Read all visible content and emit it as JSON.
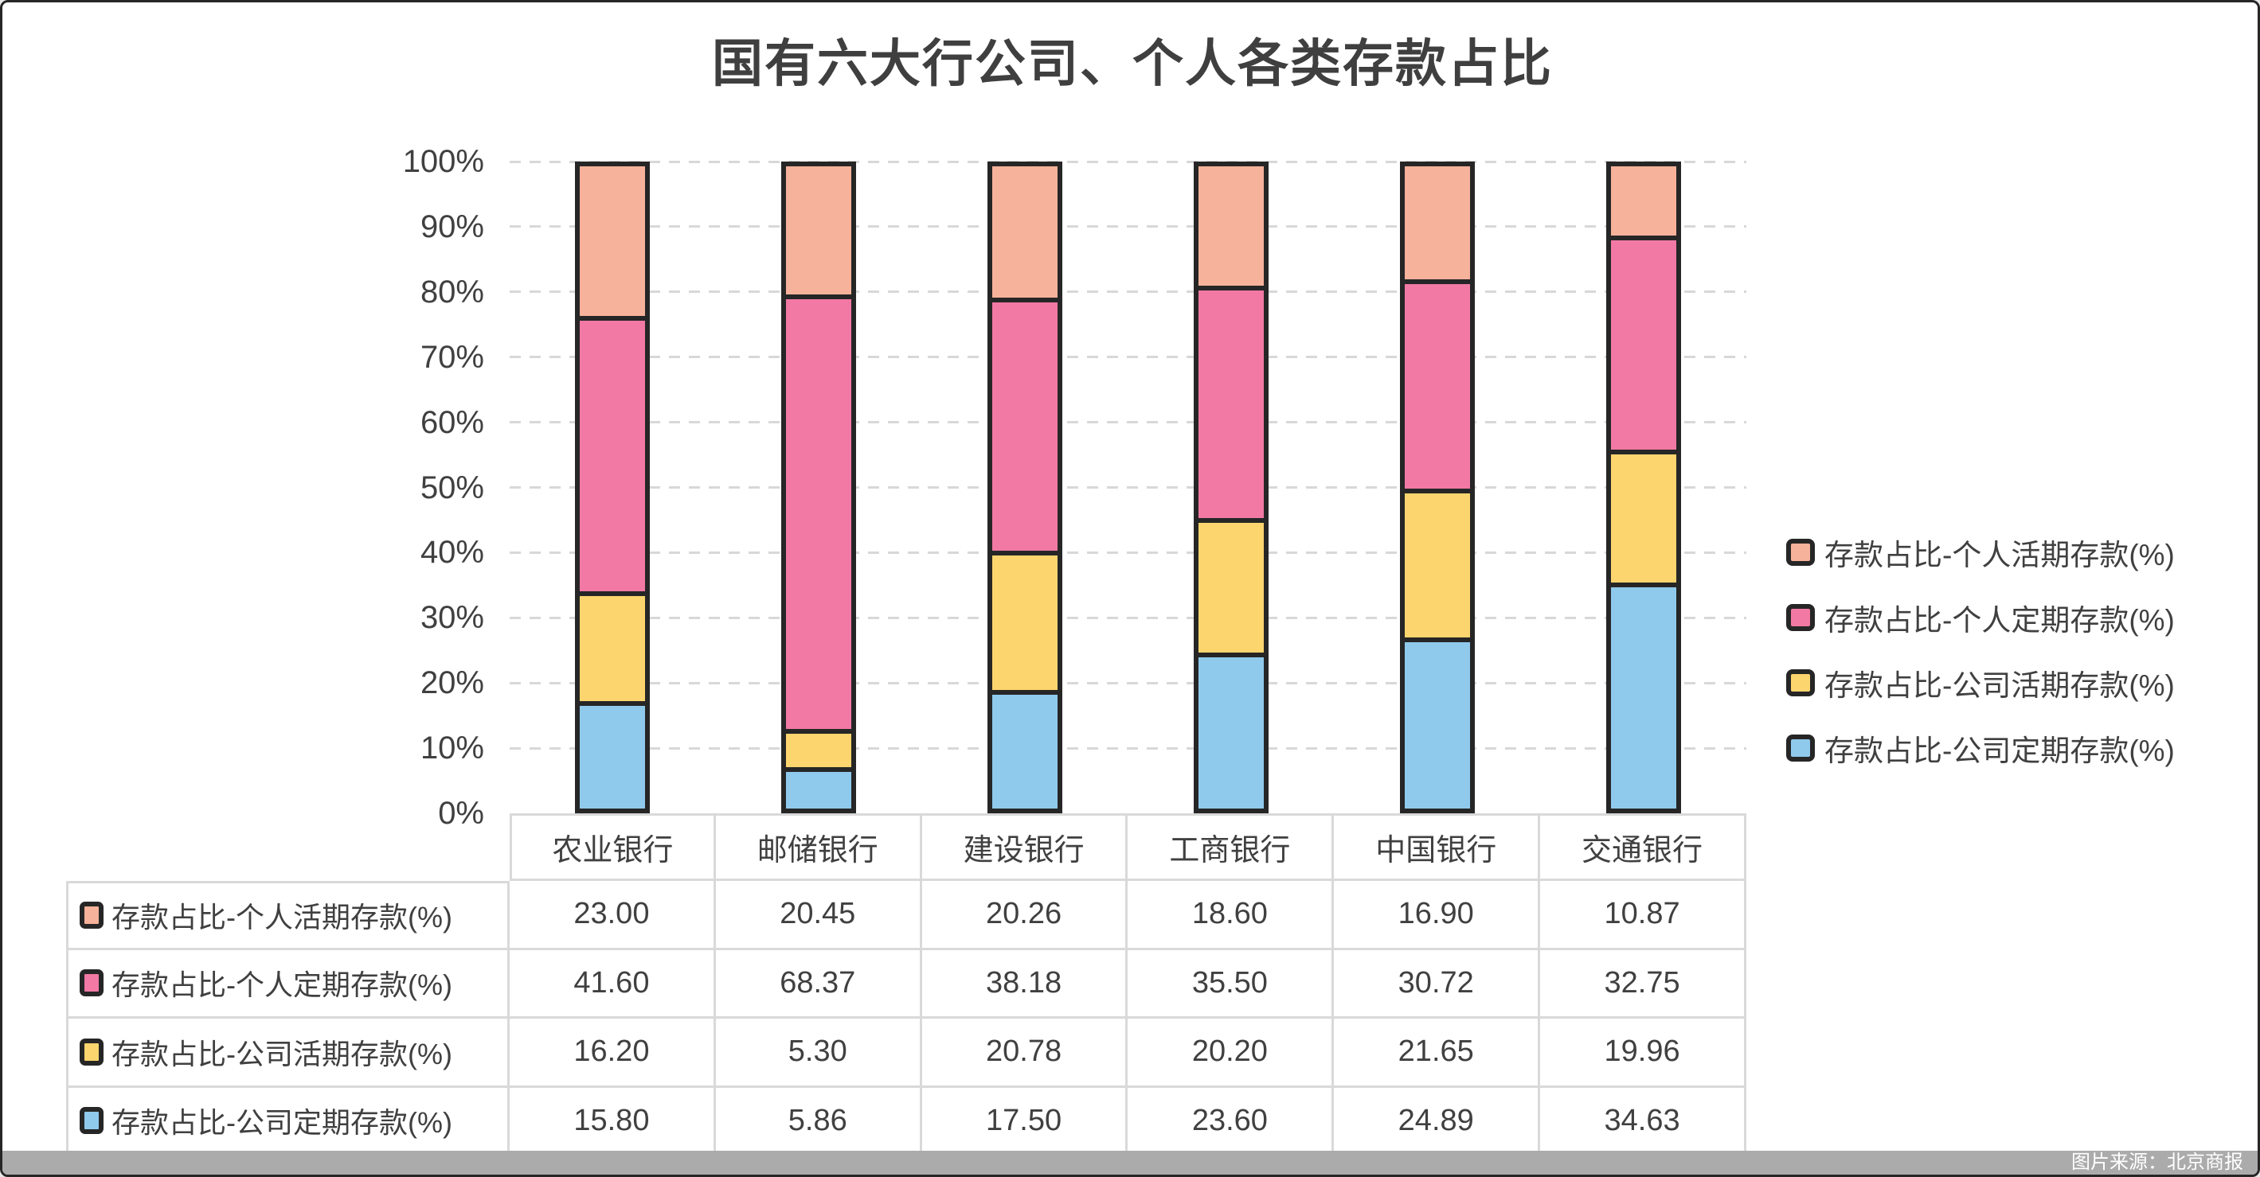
{
  "title": "国有六大行公司、个人各类存款占比",
  "colors": {
    "series_personal_demand": "#F7B29B",
    "series_personal_time": "#F279A4",
    "series_corporate_demand": "#FDD56E",
    "series_corporate_time": "#8FCAED",
    "bar_border": "#262626",
    "gridline": "#D8D8D8",
    "text": "#404040",
    "table_border": "#D9D9D9",
    "watermark_bg": "#ABABAB",
    "watermark_text": "#FFFFFF",
    "background": "#FFFFFF"
  },
  "chart_data": {
    "type": "bar",
    "stacking": "percent",
    "title": "国有六大行公司、个人各类存款占比",
    "categories": [
      "农业银行",
      "邮储银行",
      "建设银行",
      "工商银行",
      "中国银行",
      "交通银行"
    ],
    "series": [
      {
        "name": "存款占比-个人活期存款(%)",
        "color": "#F7B29B",
        "values": [
          23.0,
          20.45,
          20.26,
          18.6,
          16.9,
          10.87
        ]
      },
      {
        "name": "存款占比-个人定期存款(%)",
        "color": "#F279A4",
        "values": [
          41.6,
          68.37,
          38.18,
          35.5,
          30.72,
          32.75
        ]
      },
      {
        "name": "存款占比-公司活期存款(%)",
        "color": "#FDD56E",
        "values": [
          16.2,
          5.3,
          20.78,
          20.2,
          21.65,
          19.96
        ]
      },
      {
        "name": "存款占比-公司定期存款(%)",
        "color": "#8FCAED",
        "values": [
          15.8,
          5.86,
          17.5,
          23.6,
          24.89,
          34.63
        ]
      }
    ],
    "stack_order_bottom_to_top": [
      "存款占比-公司定期存款(%)",
      "存款占比-公司活期存款(%)",
      "存款占比-个人定期存款(%)",
      "存款占比-个人活期存款(%)"
    ],
    "xlabel": "",
    "ylabel": "",
    "ylim": [
      0,
      100
    ],
    "y_ticks": [
      "100%",
      "90%",
      "80%",
      "70%",
      "60%",
      "50%",
      "40%",
      "30%",
      "20%",
      "10%",
      "0%"
    ],
    "grid": "dashed-horizontal",
    "legend_position": "right"
  },
  "table": {
    "header": [
      "农业银行",
      "邮储银行",
      "建设银行",
      "工商银行",
      "中国银行",
      "交通银行"
    ],
    "rows": [
      {
        "label": "存款占比-个人活期存款(%)",
        "color": "#F7B29B",
        "cells": [
          "23.00",
          "20.45",
          "20.26",
          "18.60",
          "16.90",
          "10.87"
        ]
      },
      {
        "label": "存款占比-个人定期存款(%)",
        "color": "#F279A4",
        "cells": [
          "41.60",
          "68.37",
          "38.18",
          "35.50",
          "30.72",
          "32.75"
        ]
      },
      {
        "label": "存款占比-公司活期存款(%)",
        "color": "#FDD56E",
        "cells": [
          "16.20",
          "5.30",
          "20.78",
          "20.20",
          "21.65",
          "19.96"
        ]
      },
      {
        "label": "存款占比-公司定期存款(%)",
        "color": "#8FCAED",
        "cells": [
          "15.80",
          "5.86",
          "17.50",
          "23.60",
          "24.89",
          "34.63"
        ]
      }
    ]
  },
  "watermark": {
    "label": "图片来源：北京商报"
  }
}
